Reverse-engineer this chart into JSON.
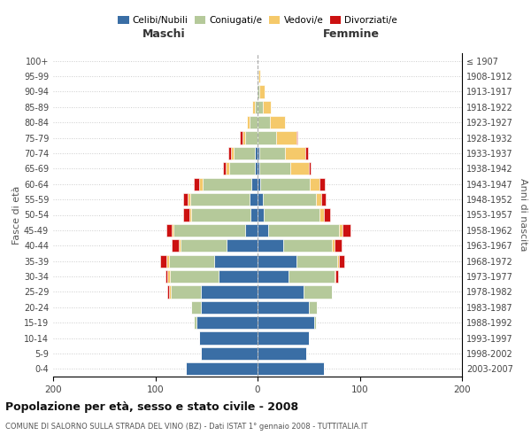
{
  "age_groups": [
    "0-4",
    "5-9",
    "10-14",
    "15-19",
    "20-24",
    "25-29",
    "30-34",
    "35-39",
    "40-44",
    "45-49",
    "50-54",
    "55-59",
    "60-64",
    "65-69",
    "70-74",
    "75-79",
    "80-84",
    "85-89",
    "90-94",
    "95-99",
    "100+"
  ],
  "birth_years": [
    "2003-2007",
    "1998-2002",
    "1993-1997",
    "1988-1992",
    "1983-1987",
    "1978-1982",
    "1973-1977",
    "1968-1972",
    "1963-1967",
    "1958-1962",
    "1953-1957",
    "1948-1952",
    "1943-1947",
    "1938-1942",
    "1933-1937",
    "1928-1932",
    "1923-1927",
    "1918-1922",
    "1913-1917",
    "1908-1912",
    "≤ 1907"
  ],
  "males": {
    "celibi": [
      70,
      55,
      57,
      60,
      55,
      55,
      38,
      42,
      30,
      12,
      7,
      8,
      6,
      3,
      3,
      0,
      0,
      0,
      0,
      0,
      0
    ],
    "coniugati": [
      0,
      0,
      0,
      2,
      10,
      30,
      48,
      45,
      45,
      70,
      58,
      58,
      48,
      25,
      20,
      12,
      8,
      3,
      1,
      0,
      0
    ],
    "vedovi": [
      0,
      0,
      0,
      0,
      0,
      2,
      2,
      2,
      2,
      2,
      2,
      2,
      3,
      3,
      3,
      3,
      2,
      2,
      0,
      0,
      0
    ],
    "divorziati": [
      0,
      0,
      0,
      0,
      0,
      1,
      2,
      6,
      7,
      5,
      6,
      5,
      5,
      3,
      3,
      2,
      0,
      0,
      0,
      0,
      0
    ]
  },
  "females": {
    "nubili": [
      65,
      48,
      50,
      55,
      50,
      45,
      30,
      38,
      25,
      10,
      6,
      5,
      3,
      2,
      2,
      0,
      0,
      0,
      0,
      0,
      0
    ],
    "coniugate": [
      0,
      0,
      0,
      2,
      8,
      28,
      45,
      40,
      48,
      70,
      55,
      52,
      48,
      30,
      25,
      18,
      12,
      5,
      2,
      1,
      0
    ],
    "vedove": [
      0,
      0,
      0,
      0,
      0,
      0,
      1,
      2,
      2,
      3,
      4,
      5,
      10,
      18,
      20,
      20,
      15,
      8,
      5,
      2,
      0
    ],
    "divorziate": [
      0,
      0,
      0,
      0,
      0,
      0,
      3,
      5,
      7,
      8,
      6,
      5,
      5,
      2,
      2,
      1,
      0,
      0,
      0,
      0,
      0
    ]
  },
  "colors": {
    "celibi": "#3A6EA5",
    "coniugati": "#B5C99A",
    "vedovi": "#F5C96A",
    "divorziati": "#CC1111"
  },
  "title": "Popolazione per età, sesso e stato civile - 2008",
  "subtitle": "COMUNE DI SALORNO SULLA STRADA DEL VINO (BZ) - Dati ISTAT 1° gennaio 2008 - TUTTITALIA.IT",
  "xlabel_left": "Maschi",
  "xlabel_right": "Femmine",
  "ylabel_left": "Fasce di età",
  "ylabel_right": "Anni di nascita",
  "xlim": 200,
  "background_color": "#ffffff",
  "grid_color": "#cccccc"
}
